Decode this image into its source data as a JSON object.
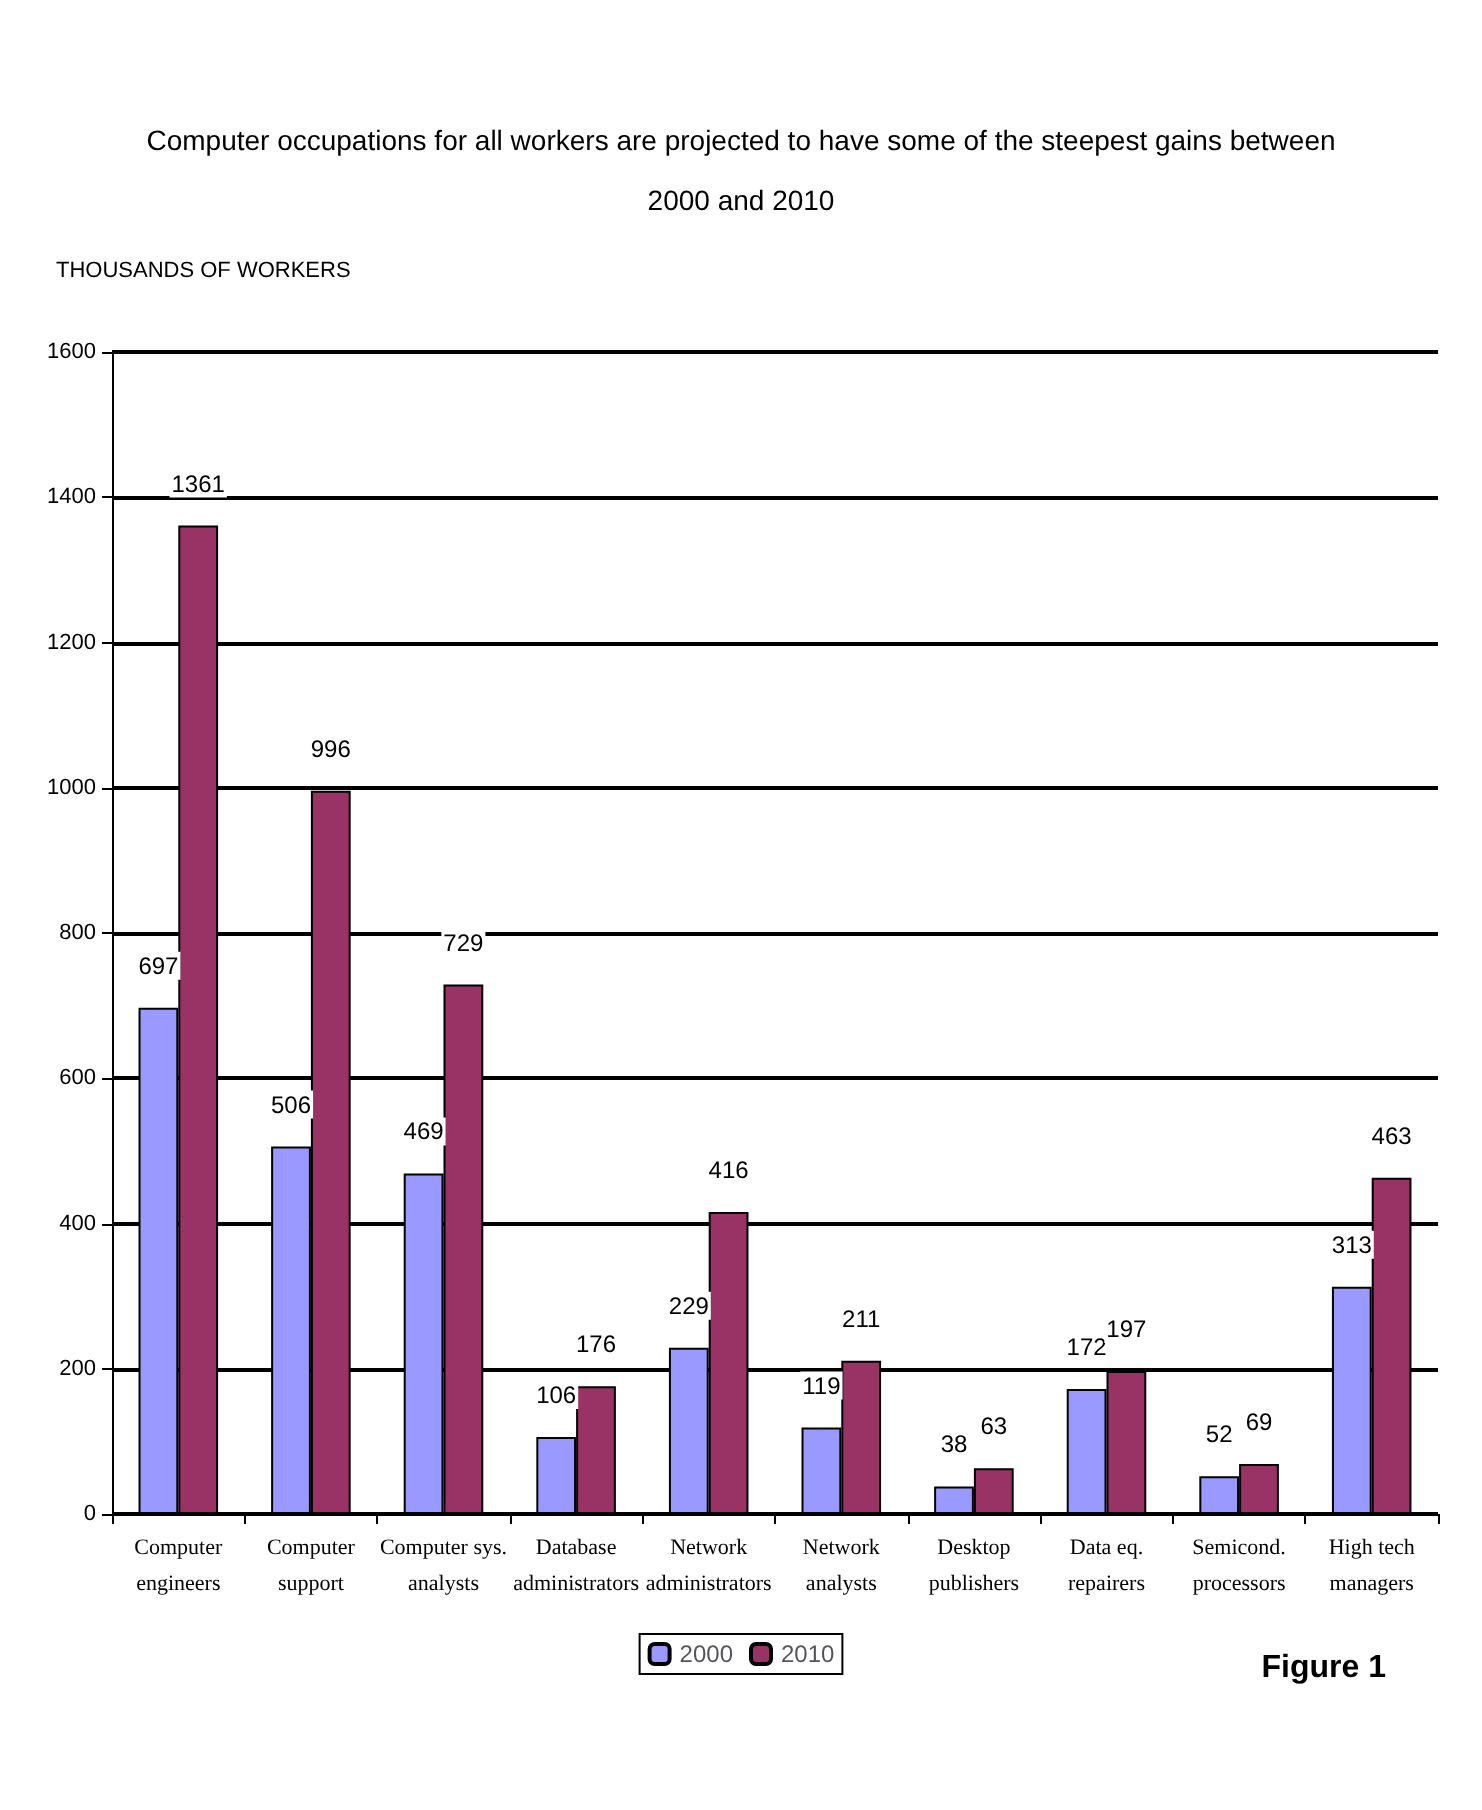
{
  "chart_data": {
    "type": "bar",
    "title": "Computer occupations for all workers are projected to have some of the steepest gains between\n2000 and 2010",
    "ylabel": "THOUSANDS OF WORKERS",
    "categories": [
      "Computer\nengineers",
      "Computer\nsupport",
      "Computer sys.\nanalysts",
      "Database\nadministrators",
      "Network\nadministrators",
      "Network\nanalysts",
      "Desktop\npublishers",
      "Data eq.\nrepairers",
      "Semicond.\nprocessors",
      "High tech\nmanagers"
    ],
    "series": [
      {
        "name": "2000",
        "color": "#9999ff",
        "values": [
          697,
          506,
          469,
          106,
          229,
          119,
          38,
          172,
          52,
          313
        ]
      },
      {
        "name": "2010",
        "color": "#993366",
        "values": [
          1361,
          996,
          729,
          176,
          416,
          211,
          63,
          197,
          69,
          463
        ]
      }
    ],
    "ylim": [
      0,
      1600
    ],
    "yticks": [
      0,
      200,
      400,
      600,
      800,
      1000,
      1200,
      1400,
      1600
    ],
    "grid": "y",
    "legend": "bottom",
    "data_labels": true,
    "annotations": [
      "Figure 1"
    ]
  }
}
